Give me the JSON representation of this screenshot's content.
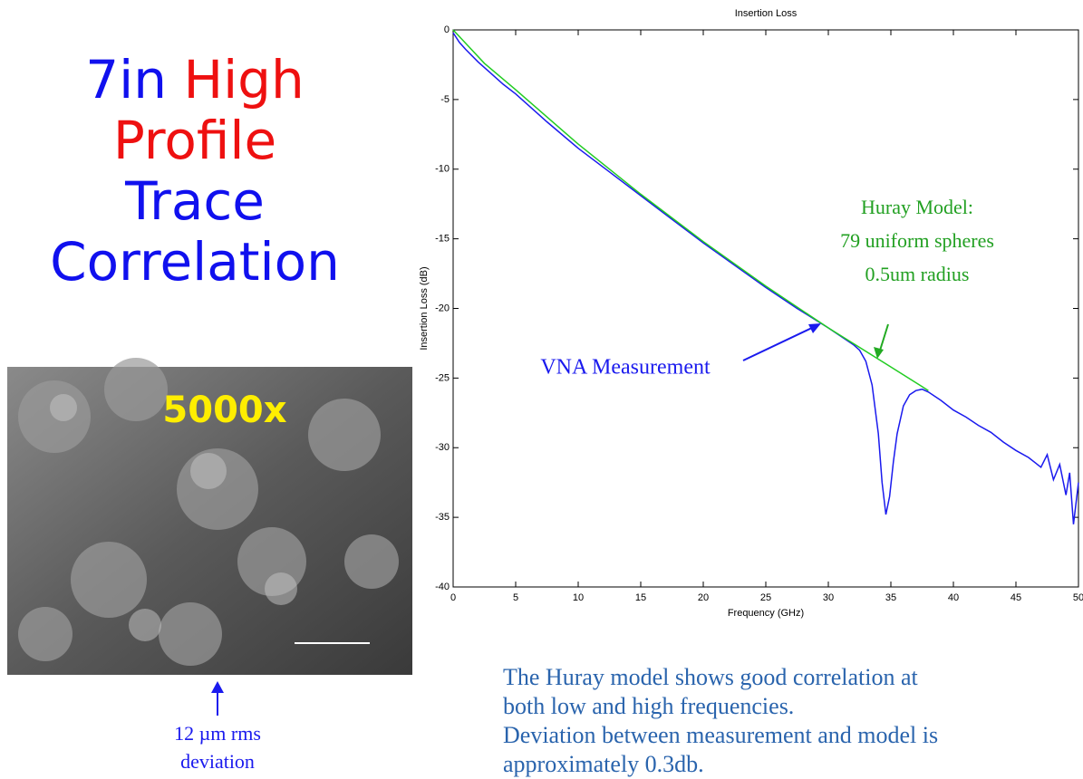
{
  "slide": {
    "title_lines": [
      [
        {
          "text": "7in",
          "color": "#1010ee"
        },
        {
          "text": "High",
          "color": "#ee1010"
        }
      ],
      [
        {
          "text": "Profile",
          "color": "#ee1010"
        }
      ],
      [
        {
          "text": "Trace",
          "color": "#1010ee"
        }
      ],
      [
        {
          "text": "Correlation",
          "color": "#1010ee"
        }
      ]
    ],
    "magnification": "5000x",
    "caption": [
      "12 µm rms",
      "deviation"
    ],
    "conclusion": [
      "The Huray model shows good correlation at",
      "both low and high frequencies.",
      "Deviation between measurement and model is",
      "approximately 0.3db."
    ]
  },
  "chart_data": {
    "type": "line",
    "title": "Insertion Loss",
    "x_label": "Frequency (GHz)",
    "y_label": "Insertion Loss (dB)",
    "xlim": [
      0,
      50
    ],
    "xticks": [
      0,
      5,
      10,
      15,
      20,
      25,
      30,
      35,
      40,
      45,
      50
    ],
    "ylim": [
      -40,
      0
    ],
    "yticks": [
      0,
      -5,
      -10,
      -15,
      -20,
      -25,
      -30,
      -35,
      -40
    ],
    "series": [
      {
        "name": "VNA Measurement",
        "color": "#1a1aee",
        "x": [
          0,
          0.5,
          1,
          2,
          3,
          4,
          5,
          7.5,
          10,
          12.5,
          15,
          17.5,
          20,
          22.5,
          25,
          27.5,
          30,
          31,
          32,
          32.5,
          33,
          33.5,
          34,
          34.3,
          34.6,
          34.9,
          35.2,
          35.5,
          36,
          36.5,
          37,
          37.5,
          38,
          39,
          40,
          41,
          42,
          43,
          44,
          45,
          46,
          47,
          47.5,
          48,
          48.5,
          49,
          49.3,
          49.6,
          50
        ],
        "values": [
          -0.2,
          -0.9,
          -1.4,
          -2.3,
          -3.1,
          -3.9,
          -4.6,
          -6.6,
          -8.5,
          -10.2,
          -11.9,
          -13.6,
          -15.3,
          -16.9,
          -18.5,
          -20.0,
          -21.4,
          -22.0,
          -22.6,
          -23.0,
          -23.8,
          -25.5,
          -29.0,
          -32.5,
          -34.8,
          -33.5,
          -31.0,
          -29.0,
          -27.0,
          -26.2,
          -25.9,
          -25.8,
          -26.0,
          -26.6,
          -27.3,
          -27.8,
          -28.4,
          -28.9,
          -29.6,
          -30.2,
          -30.7,
          -31.4,
          -30.5,
          -32.3,
          -31.2,
          -33.4,
          -31.8,
          -35.5,
          -32.5
        ]
      },
      {
        "name": "Huray Model:",
        "color": "#22cc22",
        "x": [
          0,
          2.5,
          5,
          10,
          15,
          20,
          25,
          30,
          35,
          38
        ],
        "values": [
          0,
          -2.4,
          -4.3,
          -8.2,
          -11.8,
          -15.2,
          -18.4,
          -21.4,
          -24.2,
          -25.9
        ]
      }
    ],
    "annotations": [
      "79 uniform spheres",
      "0.5um radius"
    ]
  }
}
